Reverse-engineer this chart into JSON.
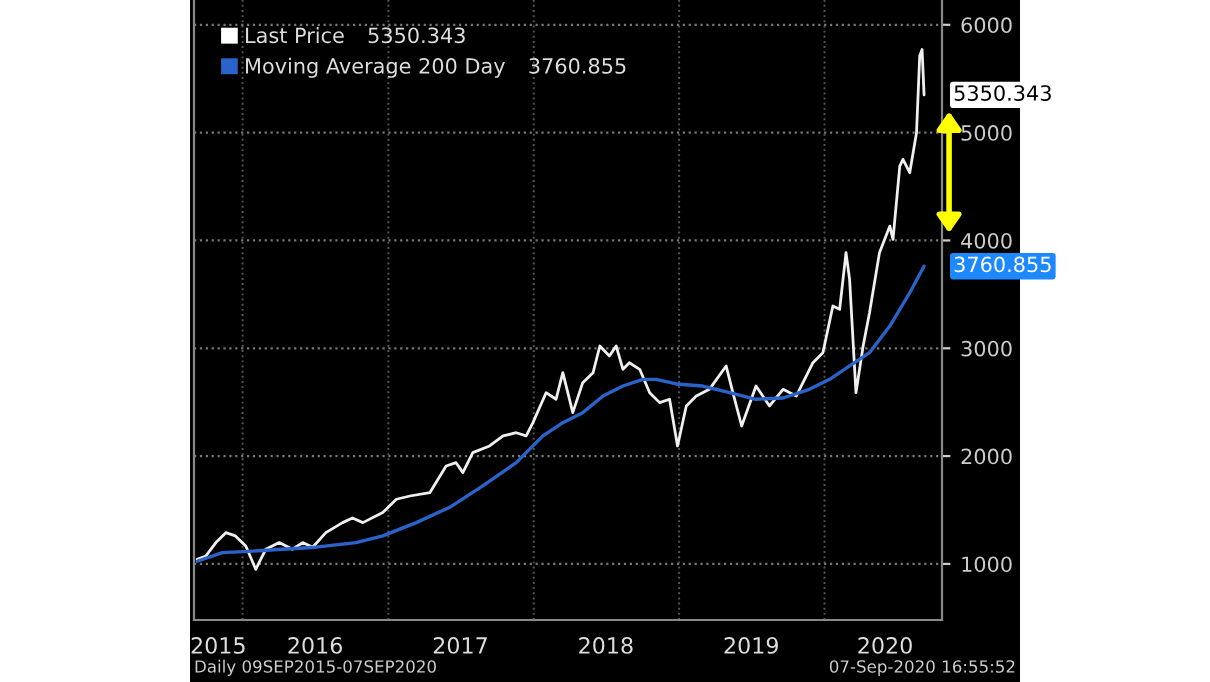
{
  "chart_data": {
    "type": "line",
    "series": [
      {
        "name": "Last Price",
        "color": "#f0f0f0",
        "value_labels": [
          null,
          null,
          null,
          null,
          null,
          null,
          null,
          null,
          null,
          null,
          null,
          null,
          null,
          null,
          null,
          null,
          null,
          null,
          null,
          null,
          null,
          null,
          null,
          null,
          null,
          null,
          null,
          null,
          null,
          null,
          null,
          null,
          null,
          null,
          null,
          null,
          null,
          null,
          null,
          null,
          null,
          null,
          null,
          null,
          null,
          null,
          null,
          null,
          null,
          null,
          null,
          null,
          null,
          null,
          null,
          null,
          null,
          null,
          null,
          null,
          null,
          null,
          null,
          null,
          null,
          null,
          null,
          null,
          null,
          null,
          null,
          null,
          null,
          "5350.343"
        ],
        "x": [
          "2015-09-09",
          "2015-10-01",
          "2015-10-26",
          "2015-11-20",
          "2015-12-14",
          "2016-01-09",
          "2016-02-03",
          "2016-02-28",
          "2016-04-02",
          "2016-05-05",
          "2016-05-31",
          "2016-06-25",
          "2016-07-28",
          "2016-09-08",
          "2016-10-03",
          "2016-10-29",
          "2016-12-18",
          "2017-01-21",
          "2017-02-24",
          "2017-04-15",
          "2017-05-26",
          "2017-06-20",
          "2017-07-07",
          "2017-08-01",
          "2017-09-12",
          "2017-10-16",
          "2017-11-18",
          "2017-12-13",
          "2017-12-30",
          "2018-02-01",
          "2018-02-26",
          "2018-03-15",
          "2018-04-09",
          "2018-05-04",
          "2018-05-30",
          "2018-06-16",
          "2018-07-10",
          "2018-07-27",
          "2018-08-13",
          "2018-08-29",
          "2018-09-24",
          "2018-10-19",
          "2018-11-13",
          "2018-12-08",
          "2018-12-28",
          "2019-01-19",
          "2019-02-13",
          "2019-03-18",
          "2019-04-29",
          "2019-05-16",
          "2019-06-07",
          "2019-07-13",
          "2019-08-16",
          "2019-09-19",
          "2019-10-22",
          "2019-12-03",
          "2019-12-28",
          "2020-01-22",
          "2020-02-08",
          "2020-02-24",
          "2020-03-04",
          "2020-03-20",
          "2020-04-07",
          "2020-04-23",
          "2020-05-18",
          "2020-06-13",
          "2020-06-21",
          "2020-07-08",
          "2020-07-16",
          "2020-08-02",
          "2020-08-19",
          "2020-08-27",
          "2020-09-02",
          "2020-09-07"
        ],
        "values": [
          1043,
          1074,
          1198,
          1290,
          1260,
          1167,
          950,
          1136,
          1198,
          1136,
          1198,
          1155,
          1290,
          1383,
          1426,
          1383,
          1476,
          1600,
          1630,
          1661,
          1908,
          1939,
          1847,
          2032,
          2094,
          2187,
          2217,
          2187,
          2310,
          2588,
          2527,
          2774,
          2403,
          2681,
          2774,
          3021,
          2928,
          3021,
          2805,
          2866,
          2805,
          2588,
          2496,
          2527,
          2094,
          2465,
          2557,
          2619,
          2836,
          2588,
          2279,
          2650,
          2465,
          2619,
          2557,
          2866,
          2959,
          3392,
          3361,
          3886,
          3639,
          2588,
          3021,
          3330,
          3886,
          4133,
          4010,
          4690,
          4752,
          4628,
          4999,
          5710,
          5771,
          5350.343
        ]
      },
      {
        "name": "Moving Average 200 Day",
        "color": "#2a63c9",
        "value_labels": [
          null,
          null,
          null,
          null,
          null,
          null,
          null,
          null,
          null,
          null,
          null,
          null,
          null,
          null,
          null,
          null,
          null,
          null,
          null,
          null,
          null,
          null,
          null,
          null,
          null,
          null,
          null,
          null,
          null,
          "3760.855"
        ],
        "x": [
          "2015-09-09",
          "2015-11-11",
          "2016-01-17",
          "2016-04-10",
          "2016-07-03",
          "2016-10-12",
          "2016-12-18",
          "2017-03-12",
          "2017-06-04",
          "2017-08-26",
          "2017-11-18",
          "2018-01-24",
          "2018-03-15",
          "2018-05-04",
          "2018-06-24",
          "2018-08-13",
          "2018-10-02",
          "2018-11-04",
          "2018-12-25",
          "2019-03-01",
          "2019-05-08",
          "2019-07-13",
          "2019-09-19",
          "2019-11-24",
          "2020-01-14",
          "2020-03-04",
          "2020-04-23",
          "2020-06-13",
          "2020-08-02",
          "2020-09-07"
        ],
        "values": [
          1025,
          1105,
          1117,
          1136,
          1155,
          1198,
          1260,
          1383,
          1525,
          1723,
          1939,
          2187,
          2310,
          2403,
          2557,
          2650,
          2712,
          2712,
          2669,
          2650,
          2588,
          2527,
          2539,
          2619,
          2712,
          2836,
          2959,
          3206,
          3515,
          3760.855
        ]
      }
    ],
    "xlim": [
      "2015-09-01",
      "2020-10-22"
    ],
    "xticks": [
      {
        "value": "2016-01-01",
        "label": null
      },
      {
        "value": "2017-01-01",
        "label": null
      },
      {
        "value": "2018-01-01",
        "label": null
      },
      {
        "value": "2019-01-01",
        "label": null
      },
      {
        "value": "2020-01-01",
        "label": null
      },
      {
        "value": "2015-11-01",
        "label": "2015"
      },
      {
        "value": "2016-07-01",
        "label": "2016"
      },
      {
        "value": "2017-07-01",
        "label": "2017"
      },
      {
        "value": "2018-07-01",
        "label": "2018"
      },
      {
        "value": "2019-07-01",
        "label": "2019"
      },
      {
        "value": "2020-06-01",
        "label": "2020"
      }
    ],
    "ylim": [
      480,
      6230
    ],
    "yticks": [
      1000,
      2000,
      3000,
      4000,
      5000,
      6000
    ],
    "grid": true,
    "legend": "top left",
    "annotations": [
      "Daily 09SEP2015-07SEP2020",
      "07-Sep-2020 16:55:52"
    ]
  }
}
